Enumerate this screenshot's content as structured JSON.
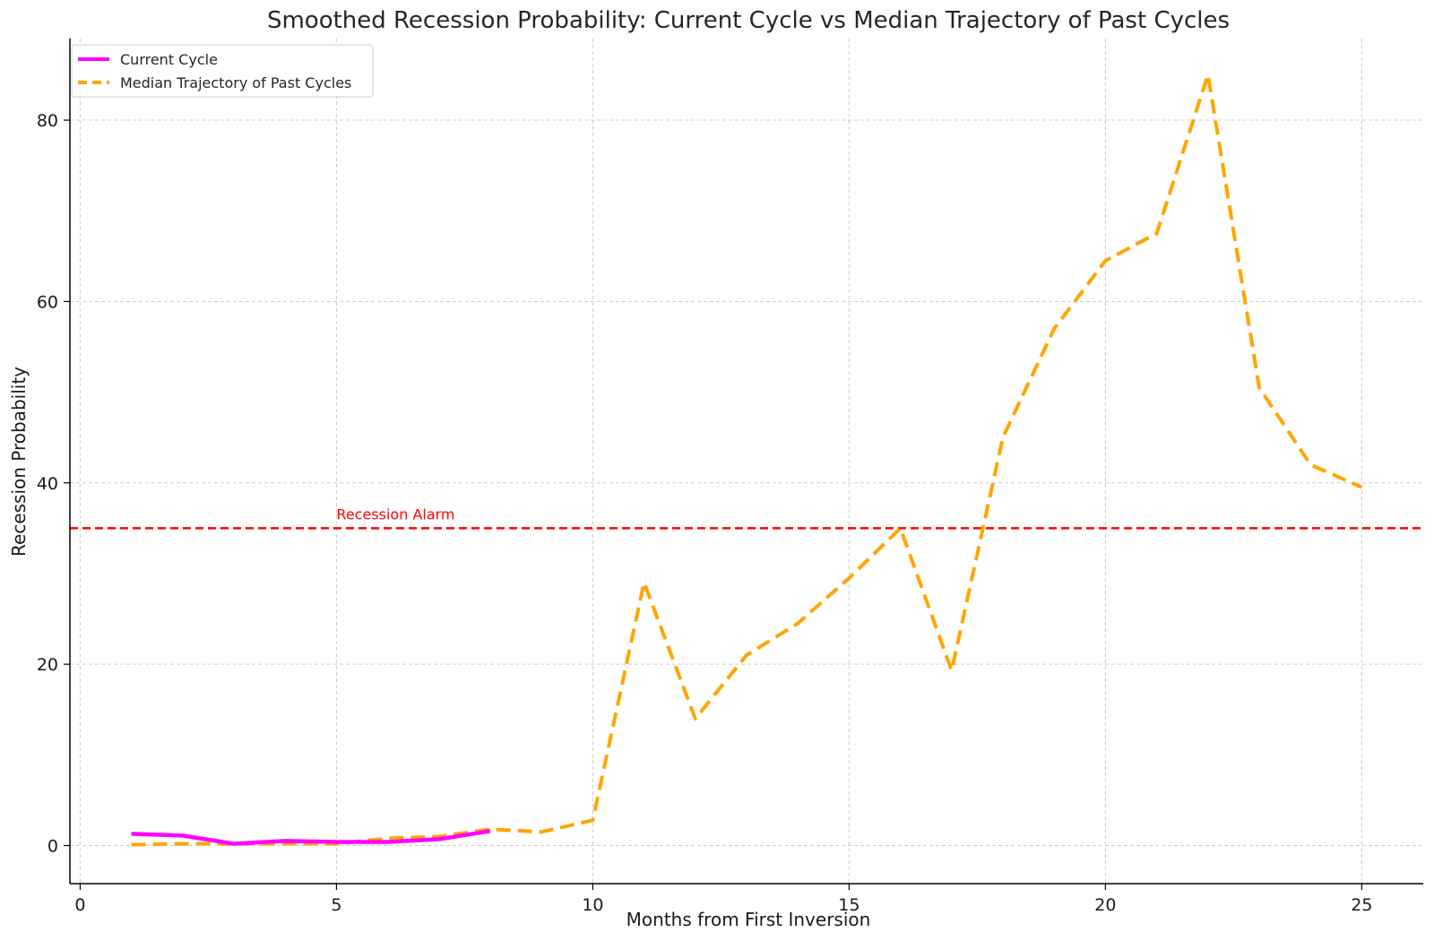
{
  "chart_data": {
    "type": "line",
    "title": "Smoothed Recession Probability: Current Cycle vs Median Trajectory of Past Cycles",
    "xlabel": "Months from First Inversion",
    "ylabel": "Recession Probability",
    "xlim": [
      -0.2,
      26.2
    ],
    "ylim": [
      -4.2,
      89
    ],
    "xticks": [
      0,
      5,
      10,
      15,
      20,
      25
    ],
    "yticks": [
      0,
      20,
      40,
      60,
      80
    ],
    "grid": true,
    "legend_position": "top-left",
    "series": [
      {
        "name": "Current Cycle",
        "color": "#ff00ff",
        "style": "solid",
        "x": [
          1,
          2,
          3,
          4,
          5,
          6,
          7,
          8
        ],
        "y": [
          1.3,
          1.1,
          0.2,
          0.5,
          0.4,
          0.4,
          0.7,
          1.6
        ]
      },
      {
        "name": "Median Trajectory of Past Cycles",
        "color": "#ffa500",
        "style": "dashed",
        "x": [
          1,
          2,
          3,
          4,
          5,
          6,
          7,
          8,
          9,
          10,
          11,
          12,
          13,
          14,
          15,
          16,
          17,
          18,
          19,
          20,
          21,
          22,
          23,
          24,
          25
        ],
        "y": [
          0.1,
          0.2,
          0.2,
          0.2,
          0.2,
          0.8,
          1.0,
          1.8,
          1.5,
          2.8,
          29.0,
          14.0,
          21.0,
          24.5,
          29.5,
          35.0,
          19.3,
          45.0,
          57.0,
          64.5,
          67.5,
          85.0,
          50.5,
          42.0,
          39.5
        ]
      }
    ],
    "reference_line": {
      "y": 35,
      "color": "#ff0000",
      "style": "dashed",
      "label": "Recession Alarm",
      "label_x": 5
    }
  }
}
